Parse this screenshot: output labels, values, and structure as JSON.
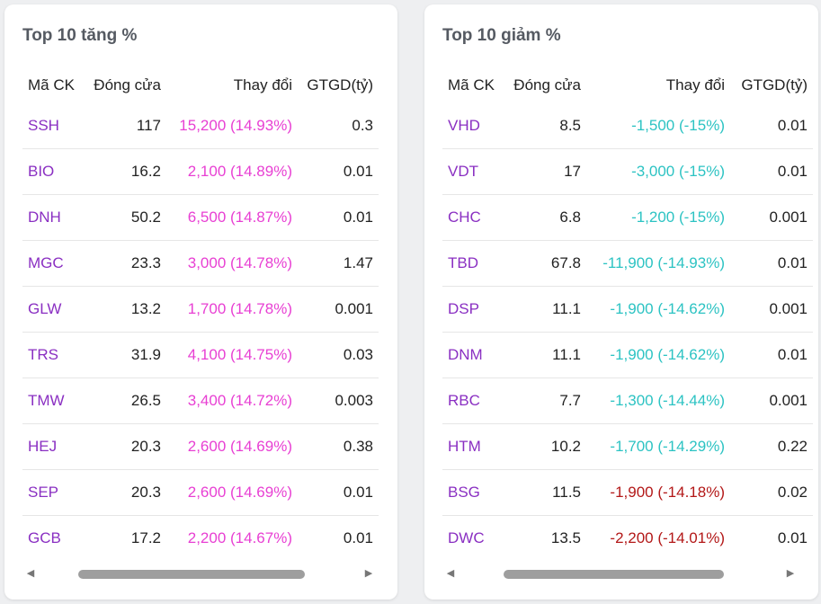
{
  "gainers": {
    "title": "Top 10 tăng %",
    "headers": [
      "Mã CK",
      "Đóng cửa",
      "Thay đổi",
      "GTGD(tỷ)"
    ],
    "rows": [
      {
        "symbol": "SSH",
        "close": "117",
        "change": "15,200 (14.93%)",
        "value": "0.3"
      },
      {
        "symbol": "BIO",
        "close": "16.2",
        "change": "2,100 (14.89%)",
        "value": "0.01"
      },
      {
        "symbol": "DNH",
        "close": "50.2",
        "change": "6,500 (14.87%)",
        "value": "0.01"
      },
      {
        "symbol": "MGC",
        "close": "23.3",
        "change": "3,000 (14.78%)",
        "value": "1.47"
      },
      {
        "symbol": "GLW",
        "close": "13.2",
        "change": "1,700 (14.78%)",
        "value": "0.001"
      },
      {
        "symbol": "TRS",
        "close": "31.9",
        "change": "4,100 (14.75%)",
        "value": "0.03"
      },
      {
        "symbol": "TMW",
        "close": "26.5",
        "change": "3,400 (14.72%)",
        "value": "0.003"
      },
      {
        "symbol": "HEJ",
        "close": "20.3",
        "change": "2,600 (14.69%)",
        "value": "0.38"
      },
      {
        "symbol": "SEP",
        "close": "20.3",
        "change": "2,600 (14.69%)",
        "value": "0.01"
      },
      {
        "symbol": "GCB",
        "close": "17.2",
        "change": "2,200 (14.67%)",
        "value": "0.01"
      }
    ],
    "scroll_left": "◀",
    "scroll_right": "▶"
  },
  "losers": {
    "title": "Top 10 giảm %",
    "headers": [
      "Mã CK",
      "Đóng cửa",
      "Thay đổi",
      "GTGD(tỷ)"
    ],
    "rows": [
      {
        "symbol": "VHD",
        "close": "8.5",
        "change": "-1,500 (-15%)",
        "value": "0.01",
        "tone": "down"
      },
      {
        "symbol": "VDT",
        "close": "17",
        "change": "-3,000 (-15%)",
        "value": "0.01",
        "tone": "down"
      },
      {
        "symbol": "CHC",
        "close": "6.8",
        "change": "-1,200 (-15%)",
        "value": "0.001",
        "tone": "down"
      },
      {
        "symbol": "TBD",
        "close": "67.8",
        "change": "-11,900 (-14.93%)",
        "value": "0.01",
        "tone": "down"
      },
      {
        "symbol": "DSP",
        "close": "11.1",
        "change": "-1,900 (-14.62%)",
        "value": "0.001",
        "tone": "down"
      },
      {
        "symbol": "DNM",
        "close": "11.1",
        "change": "-1,900 (-14.62%)",
        "value": "0.01",
        "tone": "down"
      },
      {
        "symbol": "RBC",
        "close": "7.7",
        "change": "-1,300 (-14.44%)",
        "value": "0.001",
        "tone": "down"
      },
      {
        "symbol": "HTM",
        "close": "10.2",
        "change": "-1,700 (-14.29%)",
        "value": "0.22",
        "tone": "down"
      },
      {
        "symbol": "BSG",
        "close": "11.5",
        "change": "-1,900 (-14.18%)",
        "value": "0.02",
        "tone": "drop"
      },
      {
        "symbol": "DWC",
        "close": "13.5",
        "change": "-2,200 (-14.01%)",
        "value": "0.01",
        "tone": "drop"
      }
    ],
    "scroll_left": "◀",
    "scroll_right": "▶"
  },
  "colors": {
    "symbol": "#8a2fc2",
    "gain": "#e83fd3",
    "ceiling_down": "#2cc3c3",
    "loss": "#b31818"
  }
}
